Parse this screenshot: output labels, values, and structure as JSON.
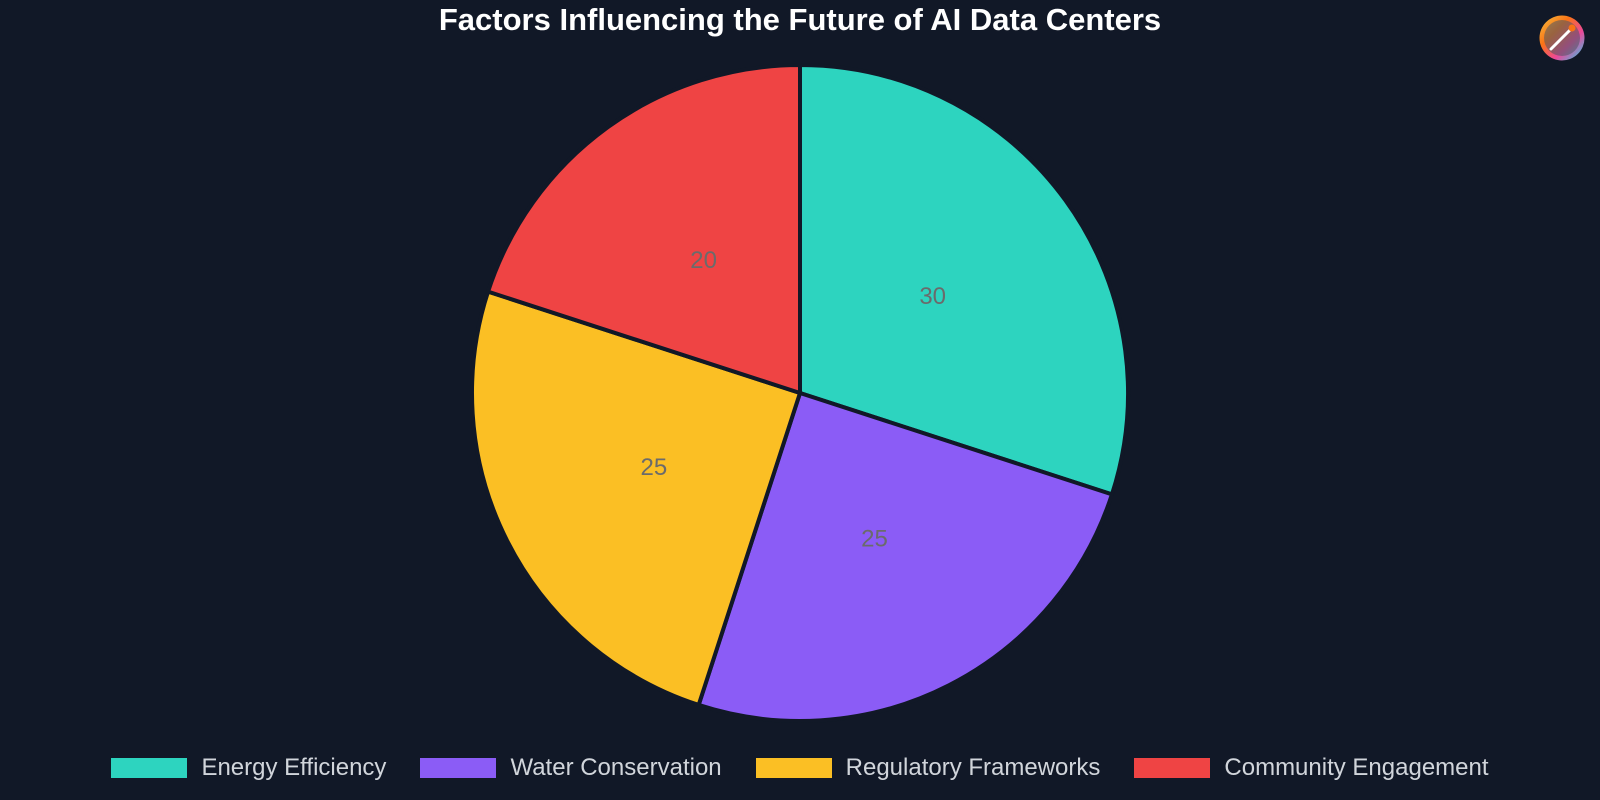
{
  "chart_data": {
    "type": "pie",
    "title": "Factors Influencing the Future of AI Data Centers",
    "slices": [
      {
        "label": "Energy Efficiency",
        "value": 30,
        "color": "#2dd4bf"
      },
      {
        "label": "Water Conservation",
        "value": 25,
        "color": "#8b5cf6"
      },
      {
        "label": "Regulatory Frameworks",
        "value": 25,
        "color": "#fbbf24"
      },
      {
        "label": "Community Engagement",
        "value": 20,
        "color": "#ef4444"
      }
    ],
    "legend_position": "bottom",
    "background": "#111827",
    "label_color": "#6b6b6b"
  },
  "logo": {
    "icon": "palette-logo-icon"
  }
}
